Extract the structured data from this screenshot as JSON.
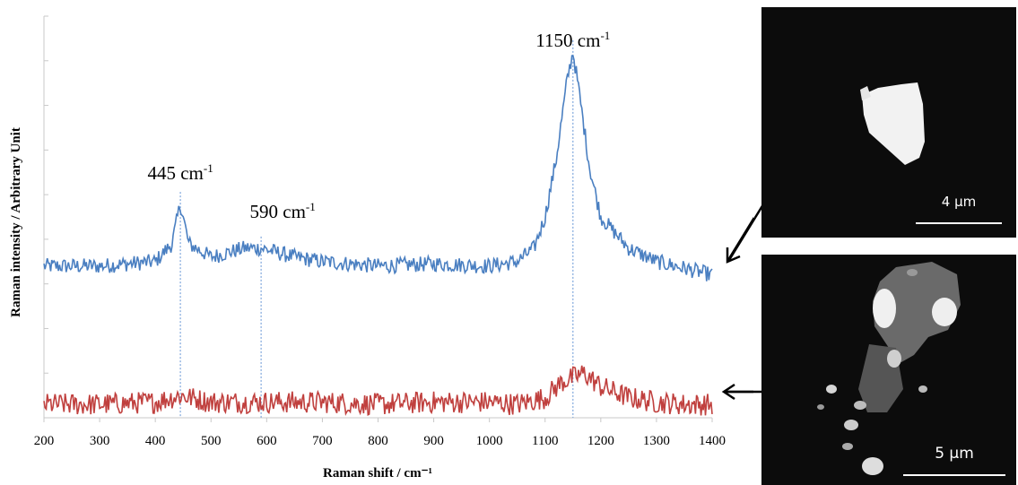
{
  "chart_data": {
    "type": "line",
    "xlabel": "Raman shift / cm⁻¹",
    "ylabel": "Raman intensity / Arbitrary Unit",
    "xlim": [
      200,
      1400
    ],
    "x_ticks": [
      "200",
      "300",
      "400",
      "500",
      "600",
      "700",
      "800",
      "900",
      "1000",
      "1100",
      "1200",
      "1300",
      "1400"
    ],
    "y_ticks_labeled": false,
    "grid": false,
    "legend": "none",
    "colors": {
      "blue": "#4a7fc1",
      "red": "#c0403e",
      "marker": "#7ea6dc",
      "axis": "#c8c8c8"
    },
    "series": [
      {
        "color": "blue",
        "x": [
          200,
          300,
          400,
          430,
          445,
          460,
          500,
          560,
          590,
          650,
          700,
          800,
          900,
          1000,
          1050,
          1080,
          1100,
          1120,
          1140,
          1150,
          1160,
          1180,
          1200,
          1250,
          1300,
          1350,
          1400
        ],
        "y": [
          3.4,
          3.4,
          3.5,
          3.9,
          4.8,
          3.9,
          3.6,
          3.8,
          3.8,
          3.6,
          3.5,
          3.4,
          3.45,
          3.4,
          3.5,
          3.8,
          4.5,
          5.8,
          7.6,
          8.2,
          7.4,
          5.6,
          4.5,
          3.8,
          3.5,
          3.35,
          3.2
        ]
      },
      {
        "color": "red",
        "x": [
          200,
          300,
          400,
          445,
          500,
          600,
          700,
          800,
          900,
          1000,
          1050,
          1100,
          1130,
          1150,
          1170,
          1200,
          1250,
          1300,
          1350,
          1400
        ],
        "y": [
          0.3,
          0.3,
          0.35,
          0.5,
          0.35,
          0.35,
          0.35,
          0.3,
          0.35,
          0.35,
          0.3,
          0.45,
          0.8,
          0.9,
          1.0,
          0.7,
          0.45,
          0.35,
          0.3,
          0.3
        ]
      }
    ],
    "annotations": [
      {
        "label": "445 cm",
        "sup": "-1",
        "x": 445
      },
      {
        "label": "590 cm",
        "sup": "-1",
        "x": 590
      },
      {
        "label": "1150 cm",
        "sup": "-1",
        "x": 1150
      }
    ]
  },
  "images": {
    "top": {
      "scale_label": "4 µm"
    },
    "bottom": {
      "scale_label": "5 µm"
    }
  }
}
